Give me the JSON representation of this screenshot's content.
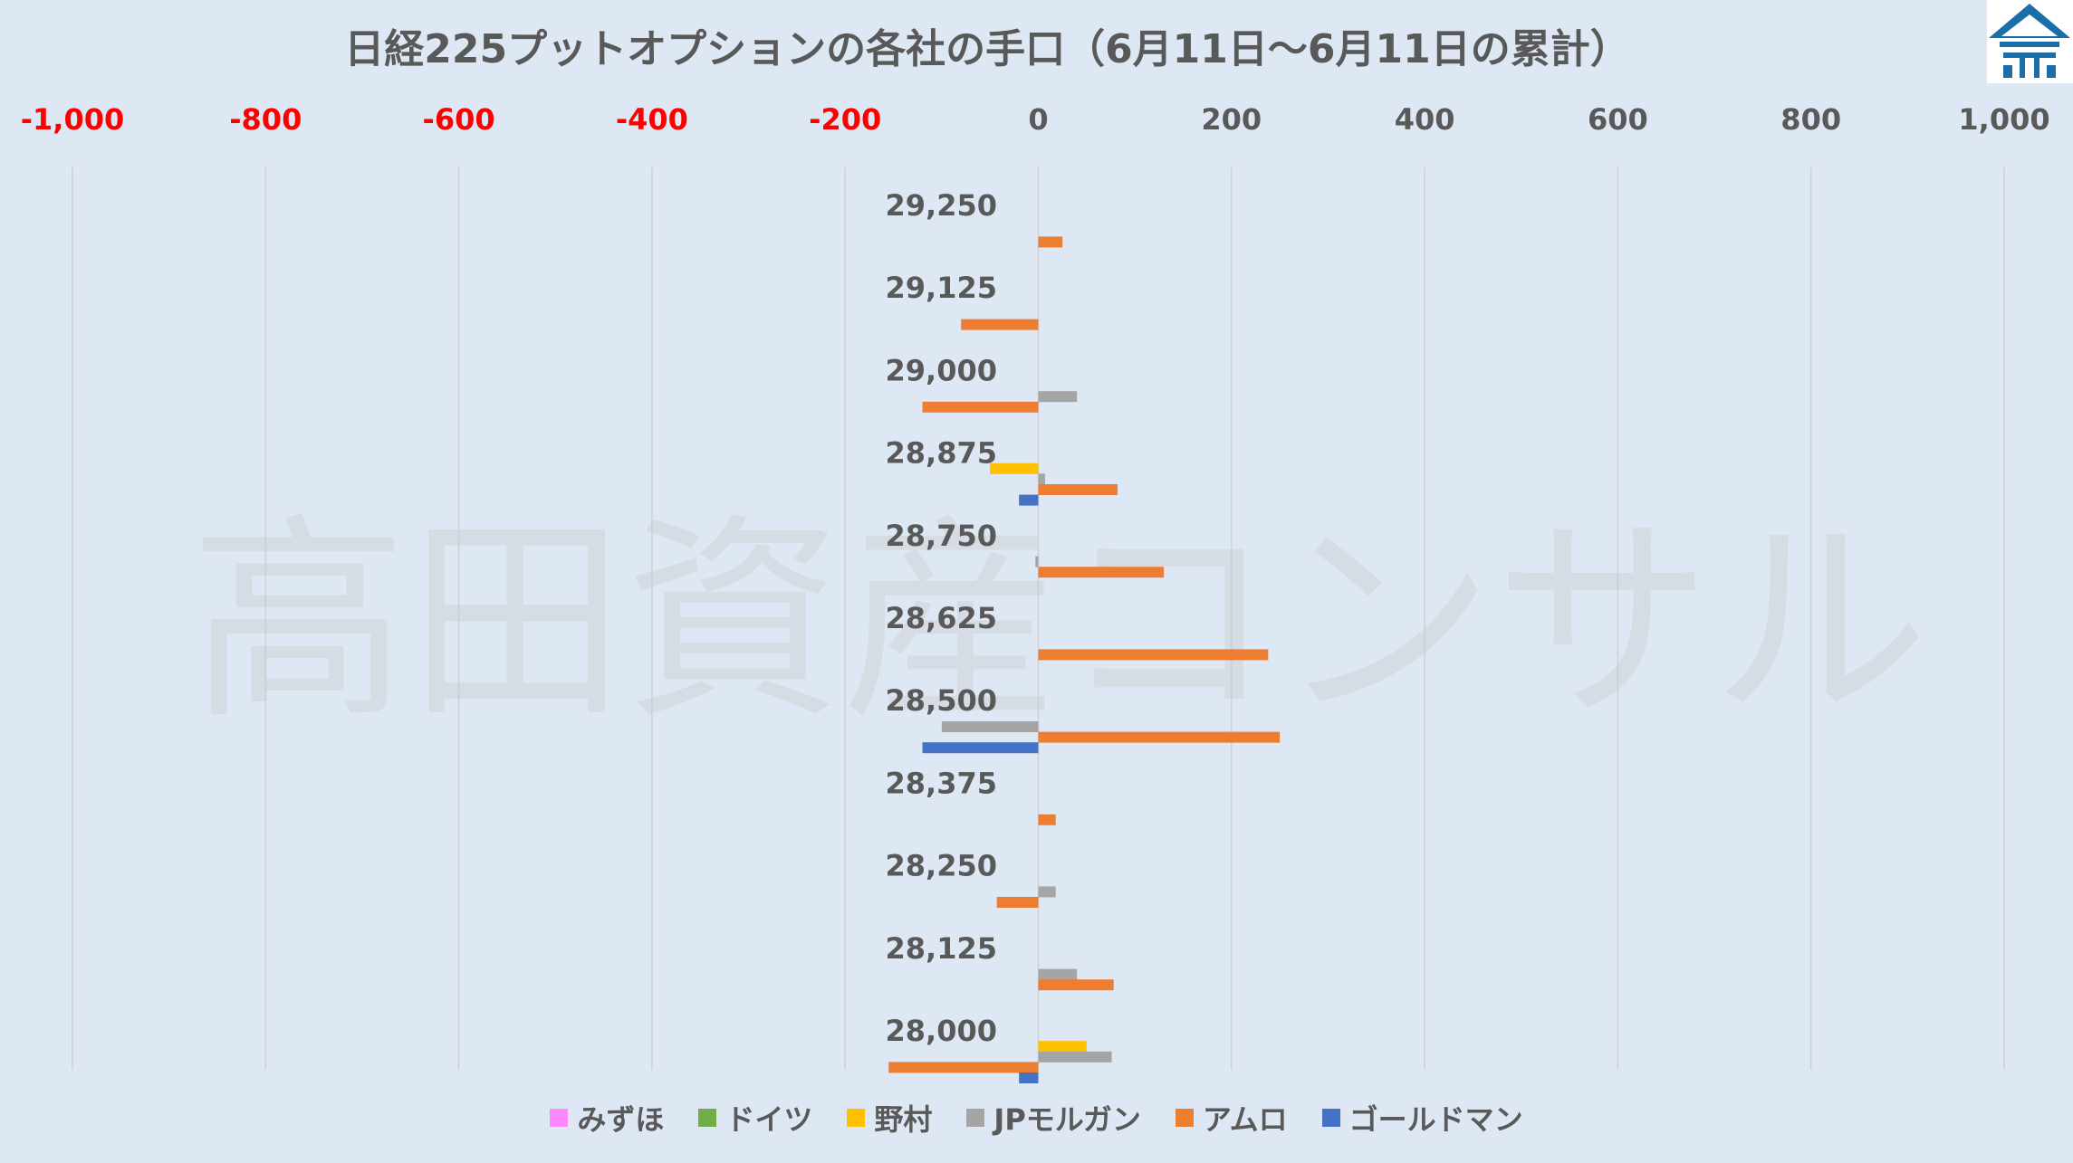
{
  "chart_data": {
    "type": "bar",
    "orientation": "horizontal",
    "title": "日経225プットオプションの各社の手口（6月11日～6月11日の累計）",
    "xlim": [
      -1000,
      1000
    ],
    "x_ticks": [
      -1000,
      -800,
      -600,
      -400,
      -200,
      0,
      200,
      400,
      600,
      800,
      1000
    ],
    "x_tick_labels": [
      "-1,000",
      "-800",
      "-600",
      "-400",
      "-200",
      "0",
      "200",
      "400",
      "600",
      "800",
      "1,000"
    ],
    "negative_tick_color": "#ff0000",
    "positive_tick_color": "#595959",
    "grid": true,
    "legend_position": "bottom",
    "categories": [
      "29,250",
      "29,125",
      "29,000",
      "28,875",
      "28,750",
      "28,625",
      "28,500",
      "28,375",
      "28,250",
      "28,125",
      "28,000"
    ],
    "series": [
      {
        "name": "みずほ",
        "color": "#ff88ff",
        "values": [
          0,
          0,
          0,
          0,
          0,
          0,
          0,
          0,
          0,
          0,
          0
        ]
      },
      {
        "name": "ドイツ",
        "color": "#70ad47",
        "values": [
          0,
          0,
          0,
          0,
          0,
          0,
          0,
          0,
          0,
          0,
          0
        ]
      },
      {
        "name": "野村",
        "color": "#ffc000",
        "values": [
          0,
          0,
          0,
          -50,
          0,
          0,
          0,
          0,
          0,
          0,
          50
        ]
      },
      {
        "name": "JPモルガン",
        "color": "#a5a5a5",
        "values": [
          0,
          0,
          40,
          7,
          -3,
          0,
          -100,
          0,
          18,
          40,
          76
        ]
      },
      {
        "name": "アムロ",
        "color": "#ed7d31",
        "values": [
          25,
          -80,
          -120,
          82,
          130,
          238,
          250,
          18,
          -43,
          78,
          -155
        ]
      },
      {
        "name": "ゴールドマン",
        "color": "#4472c4",
        "values": [
          0,
          0,
          0,
          -20,
          0,
          0,
          -120,
          0,
          0,
          0,
          -20
        ]
      }
    ]
  },
  "watermark": "高田資産コンサル",
  "logo": {
    "name": "building-logo-icon",
    "color": "#1b6fa8"
  }
}
